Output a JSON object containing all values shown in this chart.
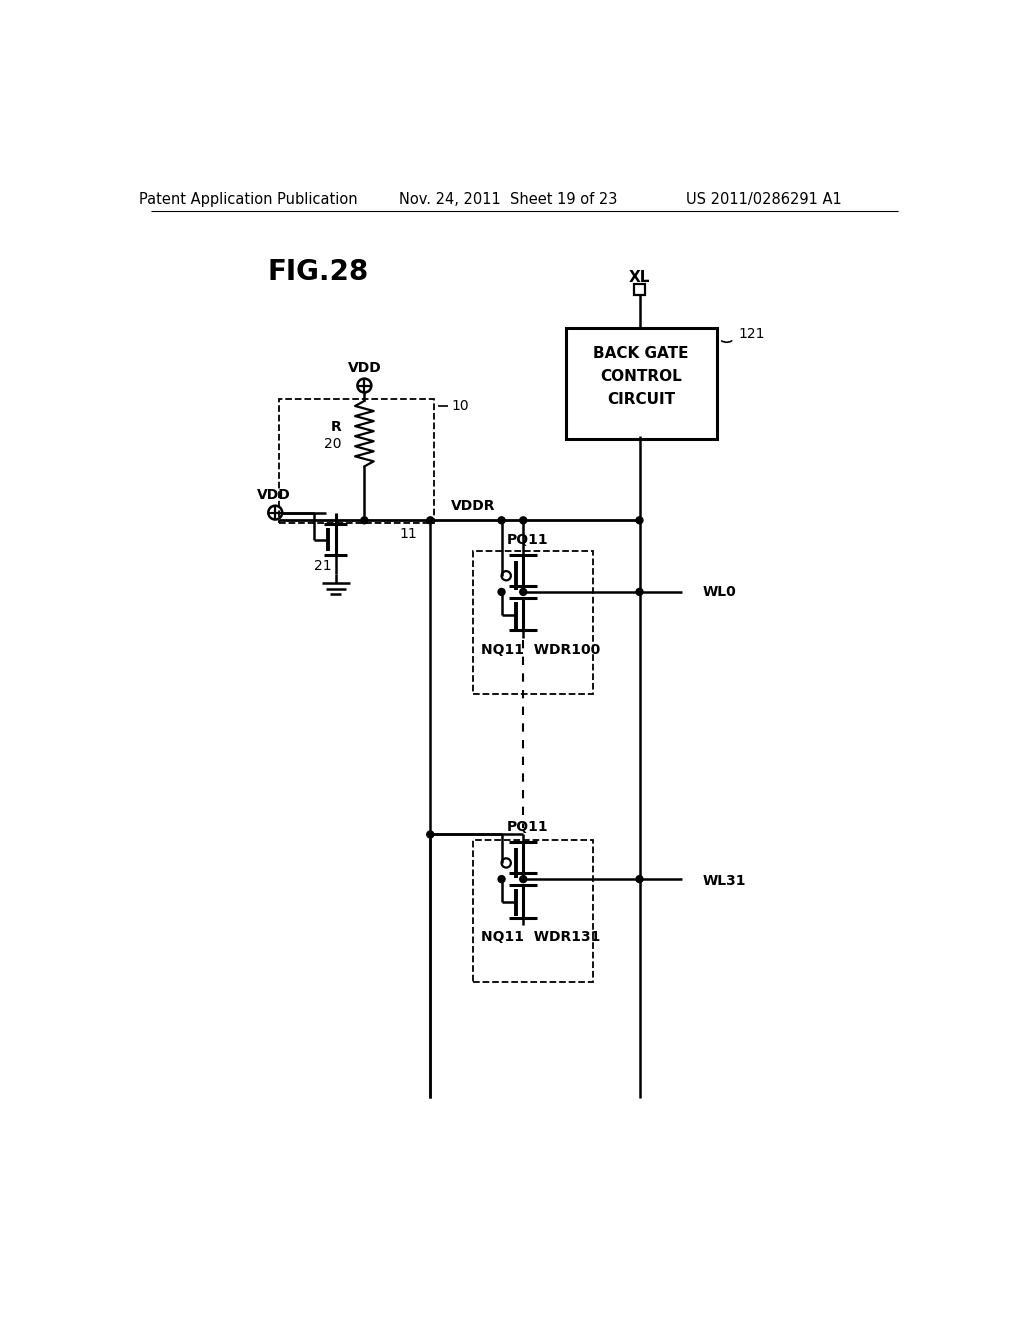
{
  "bg_color": "#ffffff",
  "header_left": "Patent Application Publication",
  "header_mid": "Nov. 24, 2011  Sheet 19 of 23",
  "header_right": "US 2011/0286291 A1",
  "fig_label": "FIG.28",
  "header_fontsize": 10.5
}
